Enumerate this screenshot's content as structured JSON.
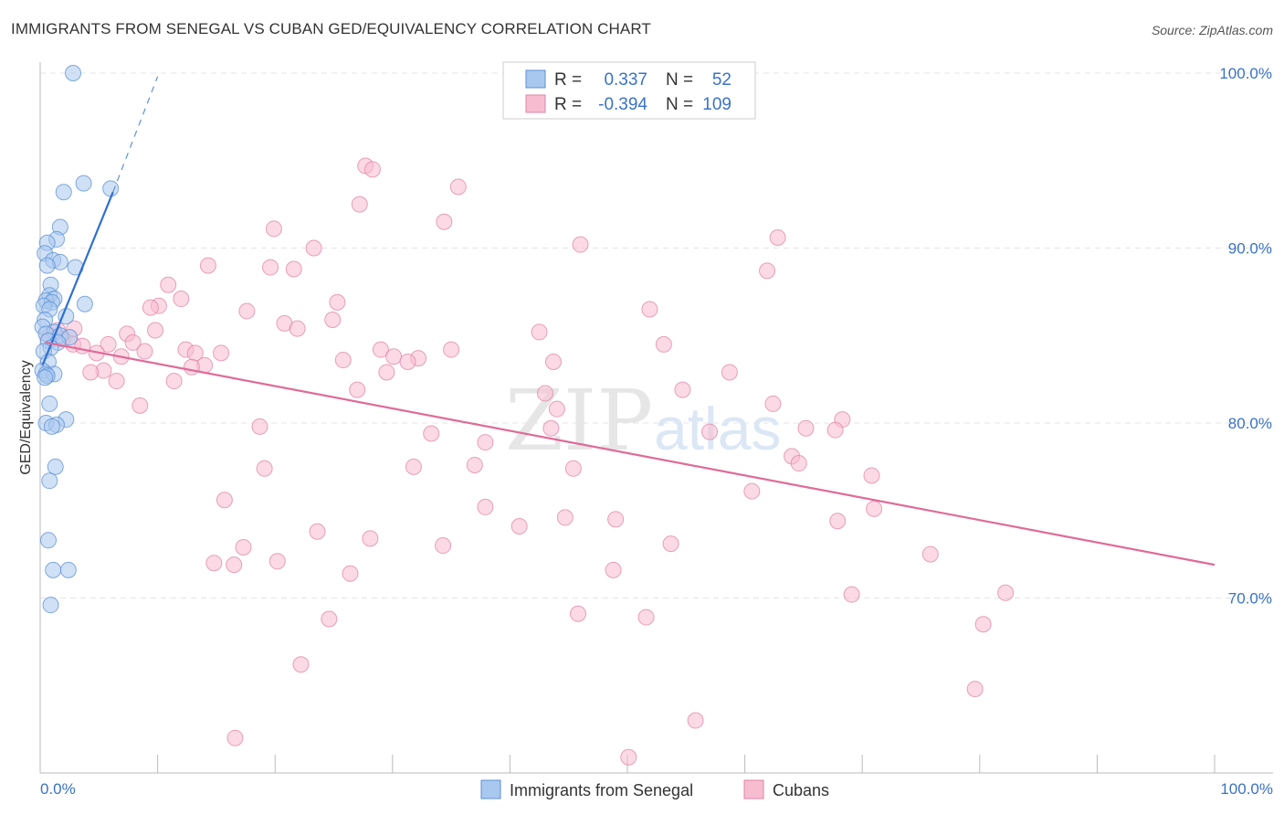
{
  "title": "IMMIGRANTS FROM SENEGAL VS CUBAN GED/EQUIVALENCY CORRELATION CHART",
  "source": "Source: ZipAtlas.com",
  "watermark": {
    "zip": "ZIP",
    "atlas": "atlas"
  },
  "legend": {
    "r_label": "R =",
    "n_label": "N =",
    "series": [
      {
        "name": "Immigrants from Senegal",
        "r": "0.337",
        "n": "52",
        "color": "#a9c8ef",
        "stroke": "#5b8fd6"
      },
      {
        "name": "Cubans",
        "r": "-0.394",
        "n": "109",
        "color": "#f7bcd0",
        "stroke": "#e283a6"
      }
    ]
  },
  "chart_data": {
    "type": "scatter",
    "title": "IMMIGRANTS FROM SENEGAL VS CUBAN GED/EQUIVALENCY CORRELATION CHART",
    "xlabel": "",
    "ylabel": "GED/Equivalency",
    "xlim": [
      0,
      100
    ],
    "ylim": [
      59.5,
      102
    ],
    "x_tick_labels": [
      "0.0%",
      "100.0%"
    ],
    "y_ticks": [
      70,
      80,
      90,
      100
    ],
    "y_tick_labels": [
      "70.0%",
      "80.0%",
      "90.0%",
      "100.0%"
    ],
    "grid": true,
    "series": [
      {
        "name": "Immigrants from Senegal",
        "color": "#5b8fd6",
        "trend": {
          "x": [
            0.2,
            6.2
          ],
          "y": [
            83.3,
            93.2
          ],
          "dashed_to": [
            10,
            99.8
          ]
        },
        "points": [
          {
            "x": 2.8,
            "y": 100.0
          },
          {
            "x": 3.7,
            "y": 93.7
          },
          {
            "x": 6.0,
            "y": 93.4
          },
          {
            "x": 2.0,
            "y": 93.2
          },
          {
            "x": 1.7,
            "y": 91.2
          },
          {
            "x": 1.4,
            "y": 90.5
          },
          {
            "x": 0.6,
            "y": 90.3
          },
          {
            "x": 0.4,
            "y": 89.7
          },
          {
            "x": 1.1,
            "y": 89.3
          },
          {
            "x": 1.7,
            "y": 89.2
          },
          {
            "x": 0.6,
            "y": 89.0
          },
          {
            "x": 3.0,
            "y": 88.9
          },
          {
            "x": 0.9,
            "y": 87.9
          },
          {
            "x": 0.8,
            "y": 87.3
          },
          {
            "x": 1.2,
            "y": 87.1
          },
          {
            "x": 0.5,
            "y": 87.0
          },
          {
            "x": 1.0,
            "y": 86.9
          },
          {
            "x": 3.8,
            "y": 86.8
          },
          {
            "x": 0.3,
            "y": 86.7
          },
          {
            "x": 0.8,
            "y": 86.5
          },
          {
            "x": 2.2,
            "y": 86.1
          },
          {
            "x": 0.4,
            "y": 85.9
          },
          {
            "x": 0.2,
            "y": 85.5
          },
          {
            "x": 1.2,
            "y": 85.2
          },
          {
            "x": 0.5,
            "y": 85.1
          },
          {
            "x": 1.7,
            "y": 85.0
          },
          {
            "x": 2.5,
            "y": 84.9
          },
          {
            "x": 0.7,
            "y": 84.7
          },
          {
            "x": 1.5,
            "y": 84.6
          },
          {
            "x": 0.9,
            "y": 84.3
          },
          {
            "x": 0.3,
            "y": 84.1
          },
          {
            "x": 0.7,
            "y": 83.5
          },
          {
            "x": 0.2,
            "y": 83.0
          },
          {
            "x": 0.5,
            "y": 82.8
          },
          {
            "x": 1.2,
            "y": 82.8
          },
          {
            "x": 0.6,
            "y": 82.7
          },
          {
            "x": 0.4,
            "y": 82.6
          },
          {
            "x": 0.8,
            "y": 81.1
          },
          {
            "x": 2.2,
            "y": 80.2
          },
          {
            "x": 0.5,
            "y": 80.0
          },
          {
            "x": 1.4,
            "y": 79.9
          },
          {
            "x": 1.0,
            "y": 79.8
          },
          {
            "x": 1.3,
            "y": 77.5
          },
          {
            "x": 0.8,
            "y": 76.7
          },
          {
            "x": 0.7,
            "y": 73.3
          },
          {
            "x": 1.1,
            "y": 71.6
          },
          {
            "x": 2.4,
            "y": 71.6
          },
          {
            "x": 0.9,
            "y": 69.6
          }
        ]
      },
      {
        "name": "Cubans",
        "color": "#e283a6",
        "trend": {
          "x": [
            0.5,
            100
          ],
          "y": [
            84.6,
            71.9
          ]
        },
        "points": [
          {
            "x": 27.7,
            "y": 94.7
          },
          {
            "x": 28.3,
            "y": 94.5
          },
          {
            "x": 35.6,
            "y": 93.5
          },
          {
            "x": 27.2,
            "y": 92.5
          },
          {
            "x": 34.4,
            "y": 91.5
          },
          {
            "x": 19.9,
            "y": 91.1
          },
          {
            "x": 62.8,
            "y": 90.6
          },
          {
            "x": 46.0,
            "y": 90.2
          },
          {
            "x": 23.3,
            "y": 90.0
          },
          {
            "x": 14.3,
            "y": 89.0
          },
          {
            "x": 19.6,
            "y": 88.9
          },
          {
            "x": 21.6,
            "y": 88.8
          },
          {
            "x": 61.9,
            "y": 88.7
          },
          {
            "x": 10.9,
            "y": 87.9
          },
          {
            "x": 12.0,
            "y": 87.1
          },
          {
            "x": 25.3,
            "y": 86.9
          },
          {
            "x": 10.1,
            "y": 86.7
          },
          {
            "x": 9.4,
            "y": 86.6
          },
          {
            "x": 51.9,
            "y": 86.5
          },
          {
            "x": 17.6,
            "y": 86.4
          },
          {
            "x": 24.9,
            "y": 85.9
          },
          {
            "x": 20.8,
            "y": 85.7
          },
          {
            "x": 21.9,
            "y": 85.4
          },
          {
            "x": 2.9,
            "y": 85.4
          },
          {
            "x": 1.5,
            "y": 85.3
          },
          {
            "x": 9.8,
            "y": 85.3
          },
          {
            "x": 42.5,
            "y": 85.2
          },
          {
            "x": 7.4,
            "y": 85.1
          },
          {
            "x": 0.8,
            "y": 85.0
          },
          {
            "x": 1.9,
            "y": 84.8
          },
          {
            "x": 7.9,
            "y": 84.6
          },
          {
            "x": 2.8,
            "y": 84.5
          },
          {
            "x": 5.8,
            "y": 84.5
          },
          {
            "x": 53.1,
            "y": 84.5
          },
          {
            "x": 3.6,
            "y": 84.4
          },
          {
            "x": 12.4,
            "y": 84.2
          },
          {
            "x": 29.0,
            "y": 84.2
          },
          {
            "x": 35.0,
            "y": 84.2
          },
          {
            "x": 8.9,
            "y": 84.1
          },
          {
            "x": 4.8,
            "y": 84.0
          },
          {
            "x": 13.2,
            "y": 84.0
          },
          {
            "x": 15.4,
            "y": 84.0
          },
          {
            "x": 6.9,
            "y": 83.8
          },
          {
            "x": 30.1,
            "y": 83.8
          },
          {
            "x": 32.2,
            "y": 83.7
          },
          {
            "x": 25.8,
            "y": 83.6
          },
          {
            "x": 31.3,
            "y": 83.5
          },
          {
            "x": 43.7,
            "y": 83.5
          },
          {
            "x": 14.0,
            "y": 83.3
          },
          {
            "x": 12.9,
            "y": 83.2
          },
          {
            "x": 5.4,
            "y": 83.0
          },
          {
            "x": 4.3,
            "y": 82.9
          },
          {
            "x": 58.7,
            "y": 82.9
          },
          {
            "x": 29.5,
            "y": 82.9
          },
          {
            "x": 6.5,
            "y": 82.4
          },
          {
            "x": 11.4,
            "y": 82.4
          },
          {
            "x": 27.0,
            "y": 81.9
          },
          {
            "x": 54.7,
            "y": 81.9
          },
          {
            "x": 43.0,
            "y": 81.7
          },
          {
            "x": 8.5,
            "y": 81.0
          },
          {
            "x": 62.4,
            "y": 81.1
          },
          {
            "x": 44.0,
            "y": 80.8
          },
          {
            "x": 68.3,
            "y": 80.2
          },
          {
            "x": 18.7,
            "y": 79.8
          },
          {
            "x": 43.5,
            "y": 79.7
          },
          {
            "x": 65.2,
            "y": 79.7
          },
          {
            "x": 67.7,
            "y": 79.6
          },
          {
            "x": 57.0,
            "y": 79.5
          },
          {
            "x": 33.3,
            "y": 79.4
          },
          {
            "x": 37.9,
            "y": 78.9
          },
          {
            "x": 64.0,
            "y": 78.1
          },
          {
            "x": 64.6,
            "y": 77.7
          },
          {
            "x": 37.0,
            "y": 77.6
          },
          {
            "x": 19.1,
            "y": 77.4
          },
          {
            "x": 31.8,
            "y": 77.5
          },
          {
            "x": 45.4,
            "y": 77.4
          },
          {
            "x": 70.8,
            "y": 77.0
          },
          {
            "x": 60.6,
            "y": 76.1
          },
          {
            "x": 15.7,
            "y": 75.6
          },
          {
            "x": 37.9,
            "y": 75.2
          },
          {
            "x": 71.0,
            "y": 75.1
          },
          {
            "x": 44.7,
            "y": 74.6
          },
          {
            "x": 49.0,
            "y": 74.5
          },
          {
            "x": 67.9,
            "y": 74.4
          },
          {
            "x": 40.8,
            "y": 74.1
          },
          {
            "x": 23.6,
            "y": 73.8
          },
          {
            "x": 28.1,
            "y": 73.4
          },
          {
            "x": 53.7,
            "y": 73.1
          },
          {
            "x": 34.3,
            "y": 73.0
          },
          {
            "x": 17.3,
            "y": 72.9
          },
          {
            "x": 75.8,
            "y": 72.5
          },
          {
            "x": 20.2,
            "y": 72.1
          },
          {
            "x": 14.8,
            "y": 72.0
          },
          {
            "x": 16.5,
            "y": 71.9
          },
          {
            "x": 48.8,
            "y": 71.6
          },
          {
            "x": 26.4,
            "y": 71.4
          },
          {
            "x": 82.2,
            "y": 70.3
          },
          {
            "x": 69.1,
            "y": 70.2
          },
          {
            "x": 45.8,
            "y": 69.1
          },
          {
            "x": 51.6,
            "y": 68.9
          },
          {
            "x": 24.6,
            "y": 68.8
          },
          {
            "x": 80.3,
            "y": 68.5
          },
          {
            "x": 22.2,
            "y": 66.2
          },
          {
            "x": 79.6,
            "y": 64.8
          },
          {
            "x": 55.8,
            "y": 63.0
          },
          {
            "x": 16.6,
            "y": 62.0
          },
          {
            "x": 50.1,
            "y": 60.9
          }
        ]
      }
    ]
  }
}
